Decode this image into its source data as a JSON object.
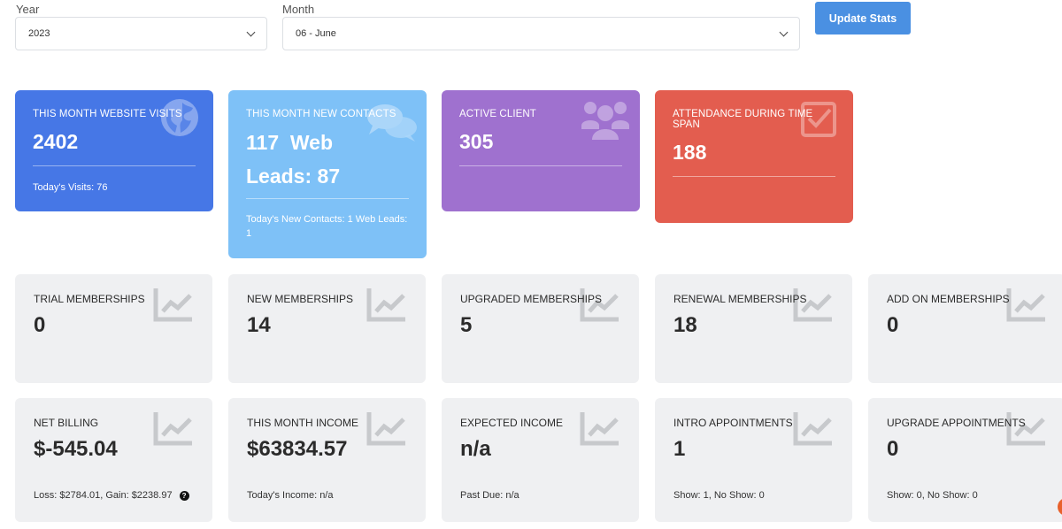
{
  "filters": {
    "year_label": "Year",
    "year_value": "2023",
    "month_label": "Month",
    "month_value": "06 - June",
    "update_button": "Update Stats"
  },
  "top_cards": [
    {
      "title": "THIS MONTH WEBSITE VISITS",
      "value": "2402",
      "sub": "Today's Visits: 76",
      "color": "#4677e6",
      "icon": "globe-icon"
    },
    {
      "title": "THIS MONTH NEW CONTACTS",
      "value_line1": "117  Web",
      "value_line2": "Leads: 87",
      "sub": "Today's New Contacts: 1  Web Leads: 1",
      "color": "#7ec1f7",
      "icon": "chat-bubbles-icon"
    },
    {
      "title": "ACTIVE CLIENT",
      "value": "305",
      "color": "#9f71cf",
      "icon": "users-icon"
    },
    {
      "title": "ATTENDANCE DURING TIME SPAN",
      "value": "188",
      "color": "#e35d4f",
      "icon": "checkbox-icon"
    }
  ],
  "row2": [
    {
      "title": "TRIAL MEMBERSHIPS",
      "value": "0"
    },
    {
      "title": "NEW MEMBERSHIPS",
      "value": "14"
    },
    {
      "title": "UPGRADED MEMBERSHIPS",
      "value": "5"
    },
    {
      "title": "RENEWAL MEMBERSHIPS",
      "value": "18"
    },
    {
      "title": "ADD ON MEMBERSHIPS",
      "value": "0"
    }
  ],
  "row3": [
    {
      "title": "NET BILLING",
      "value": "$-545.04",
      "sub": "Loss: $2784.01, Gain: $2238.97",
      "help": "?"
    },
    {
      "title": "THIS MONTH INCOME",
      "value": "$63834.57",
      "sub": "Today's Income: n/a"
    },
    {
      "title": "EXPECTED INCOME",
      "value": "n/a",
      "sub": "Past Due: n/a"
    },
    {
      "title": "INTRO APPOINTMENTS",
      "value": "1",
      "sub": "Show: 1, No Show: 0"
    },
    {
      "title": "UPGRADE APPOINTMENTS",
      "value": "0",
      "sub": "Show: 0, No Show: 0"
    }
  ]
}
